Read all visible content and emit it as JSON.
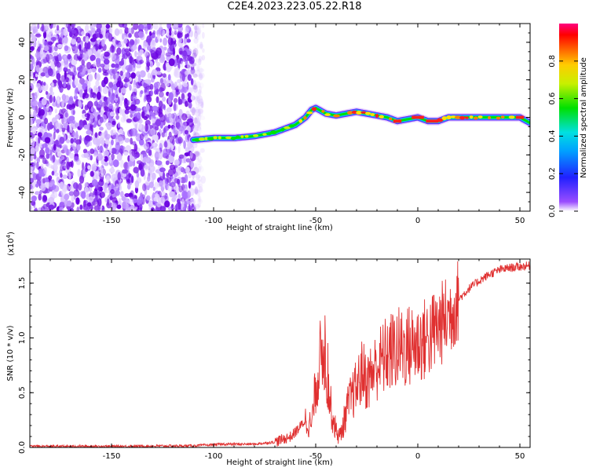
{
  "title": "C2E4.2023.223.05.22.R18",
  "chart_data": [
    {
      "type": "heatmap",
      "xlabel": "Height of straight line (km)",
      "ylabel": "Frequency (Hz)",
      "xlim": [
        -190,
        55
      ],
      "ylim": [
        -50,
        50
      ],
      "xticks": [
        "-150",
        "-100",
        "-50",
        "0",
        "50"
      ],
      "yticks": [
        "-40",
        "-20",
        "0",
        "20",
        "40"
      ],
      "colorbar": {
        "label": "Normalized spectral amplitude",
        "range": [
          0.0,
          1.0
        ],
        "ticks": [
          "0.0",
          "0.2",
          "0.4",
          "0.6",
          "0.8"
        ]
      },
      "ridge": {
        "x": [
          -110,
          -100,
          -90,
          -80,
          -70,
          -65,
          -60,
          -55,
          -52,
          -50,
          -45,
          -40,
          -35,
          -30,
          -25,
          -20,
          -15,
          -10,
          -5,
          0,
          5,
          10,
          15,
          20,
          30,
          40,
          50,
          55
        ],
        "y": [
          -12,
          -11,
          -11,
          -10,
          -8,
          -6,
          -4,
          0,
          4,
          5,
          2,
          1,
          2,
          3,
          2,
          1,
          0,
          -2,
          -1,
          0,
          -2,
          -2,
          0,
          0,
          0,
          0,
          0,
          -3
        ]
      }
    },
    {
      "type": "line",
      "xlabel": "Height of straight line (km)",
      "ylabel": "SNR (10 * v/v)",
      "yunit": "(x10",
      "yunit_exp": "4",
      "yunit_close": ")",
      "xlim": [
        -190,
        55
      ],
      "ylim": [
        0.0,
        1.72
      ],
      "xticks": [
        "-150",
        "-100",
        "-50",
        "0",
        "50"
      ],
      "yticks": [
        "0.0",
        "0.5",
        "1.0",
        "1.5"
      ],
      "series": [
        {
          "color": "#e03030",
          "x": [
            -190,
            -150,
            -110,
            -95,
            -80,
            -70,
            -62,
            -58,
            -55,
            -52,
            -50,
            -48,
            -46,
            -44,
            -42,
            -40,
            -38,
            -36,
            -34,
            -30,
            -27,
            -25,
            -20,
            -15,
            -10,
            -5,
            0,
            5,
            10,
            15,
            20,
            25,
            30,
            35,
            40,
            45,
            50,
            55
          ],
          "y": [
            0.01,
            0.01,
            0.015,
            0.03,
            0.03,
            0.05,
            0.1,
            0.18,
            0.25,
            0.2,
            0.55,
            0.8,
            0.9,
            0.55,
            0.3,
            0.15,
            0.1,
            0.25,
            0.4,
            0.55,
            0.7,
            0.6,
            0.75,
            0.85,
            0.9,
            0.92,
            0.95,
            1.0,
            1.1,
            1.2,
            1.35,
            1.45,
            1.52,
            1.58,
            1.62,
            1.64,
            1.65,
            1.66
          ]
        }
      ]
    }
  ]
}
